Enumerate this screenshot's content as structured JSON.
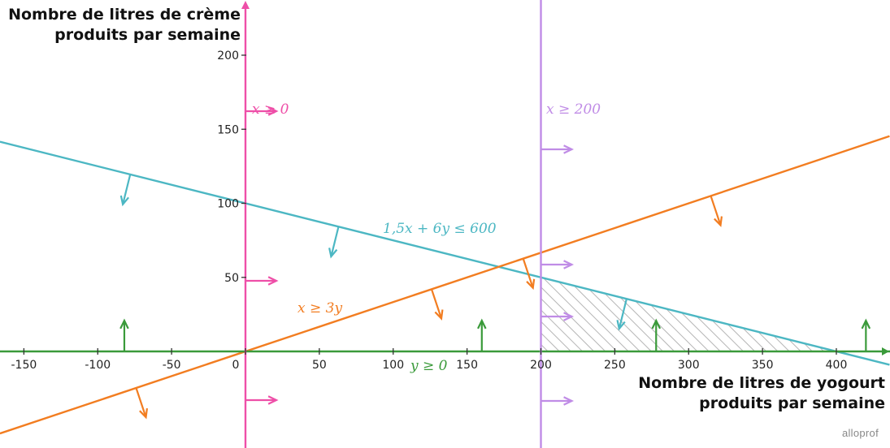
{
  "chart_data": {
    "type": "line",
    "xlabel_lines": [
      "Nombre de litres de yogourt",
      "produits par semaine"
    ],
    "ylabel_lines": [
      "Nombre de litres de crème",
      "produits par semaine"
    ],
    "xlim": [
      -160,
      412
    ],
    "ylim": [
      -65,
      235
    ],
    "x_ticks": [
      -150,
      -100,
      -50,
      0,
      50,
      100,
      150,
      200,
      250,
      300,
      350,
      400
    ],
    "y_ticks": [
      50,
      100,
      150,
      200
    ],
    "x_tick_labels": [
      "-150",
      "-100",
      "-50",
      "0",
      "50",
      "100",
      "150",
      "200",
      "250",
      "300",
      "350",
      "400"
    ],
    "y_tick_labels": [
      "50",
      "100",
      "150",
      "200"
    ],
    "constraints": [
      {
        "label": "x ≥ 0",
        "color": "#ee4fa8",
        "kind": "vertical",
        "x": 0
      },
      {
        "label": "x ≥ 200",
        "color": "#c08ce6",
        "kind": "vertical",
        "x": 200
      },
      {
        "label": "1,5x + 6y ≤ 600",
        "color": "#4cb7c3",
        "kind": "line",
        "slope": -0.25,
        "intercept": 100
      },
      {
        "label": "x ≥ 3y",
        "color": "#f27d21",
        "kind": "line",
        "slope": 0.3333,
        "intercept": 0
      },
      {
        "label": "y ≥ 0",
        "color": "#3a9a3a",
        "kind": "horizontal",
        "y": 0
      }
    ],
    "feasible_region": [
      [
        200,
        0
      ],
      [
        200,
        50
      ],
      [
        400,
        0
      ]
    ],
    "feasible_fill": "hatched grey"
  },
  "watermark": "alloprof"
}
